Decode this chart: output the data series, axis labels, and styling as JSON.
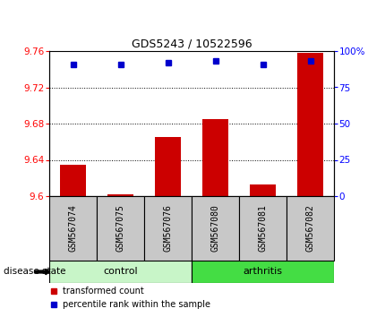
{
  "title": "GDS5243 / 10522596",
  "categories": [
    "GSM567074",
    "GSM567075",
    "GSM567076",
    "GSM567080",
    "GSM567081",
    "GSM567082"
  ],
  "red_values": [
    9.635,
    9.602,
    9.665,
    9.685,
    9.613,
    9.758
  ],
  "blue_values": [
    91,
    91,
    92,
    93,
    91,
    93
  ],
  "ylim_left": [
    9.6,
    9.76
  ],
  "ylim_right": [
    0,
    100
  ],
  "yticks_left": [
    9.6,
    9.64,
    9.68,
    9.72,
    9.76
  ],
  "yticks_right": [
    0,
    25,
    50,
    75,
    100
  ],
  "ytick_labels_right": [
    "0",
    "25",
    "50",
    "75",
    "100%"
  ],
  "grid_values": [
    9.64,
    9.68,
    9.72
  ],
  "bar_color": "#cc0000",
  "dot_color": "#0000cc",
  "control_color": "#c8f5c8",
  "arthritis_color": "#44dd44",
  "label_box_color": "#c8c8c8",
  "disease_label": "disease state",
  "legend_red": "transformed count",
  "legend_blue": "percentile rank within the sample",
  "bar_width": 0.55,
  "title_fontsize": 9,
  "tick_fontsize": 7.5,
  "label_fontsize": 7,
  "group_fontsize": 8
}
